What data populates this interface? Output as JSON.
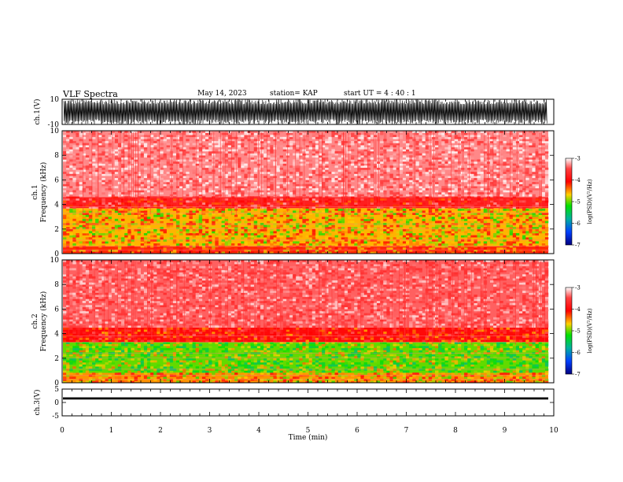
{
  "header": {
    "title": "VLF Spectra",
    "date": "May 14, 2023",
    "station": "station= KAP",
    "start": "start  UT  =   4 : 40 : 1"
  },
  "chart_data": [
    {
      "type": "line",
      "panel": "ch1-waveform",
      "ylabel": "ch.1(V)",
      "ylim": [
        -10,
        10
      ],
      "yticks": [
        "10",
        "-10"
      ],
      "xlim": [
        0,
        10
      ]
    },
    {
      "type": "heatmap",
      "panel": "ch1-spectrogram",
      "ylabel": "ch.1\nFrequency  (kHz)",
      "ylim": [
        0,
        10
      ],
      "yticks": [
        "0",
        "2",
        "4",
        "6",
        "8",
        "10"
      ],
      "xlim": [
        0,
        10
      ],
      "colorbar": {
        "label": "log(PSD)(V²/Hz)",
        "range": [
          -7,
          -3
        ],
        "ticks": [
          "-3",
          "-4",
          "-5",
          "-6",
          "-7"
        ]
      },
      "bands": [
        {
          "from": 0,
          "to": 0.6,
          "level": -4.2
        },
        {
          "from": 0.6,
          "to": 3.7,
          "level": -4.6
        },
        {
          "from": 3.7,
          "to": 4.6,
          "level": -3.8
        },
        {
          "from": 4.6,
          "to": 10,
          "level": -3.3
        }
      ]
    },
    {
      "type": "heatmap",
      "panel": "ch2-spectrogram",
      "ylabel": "ch.2\nFrequency  (kHz)",
      "ylim": [
        0,
        10
      ],
      "yticks": [
        "0",
        "2",
        "4",
        "6",
        "8",
        "10"
      ],
      "xlim": [
        0,
        10
      ],
      "colorbar": {
        "label": "log(PSD)(V²/Hz)",
        "range": [
          -7,
          -3
        ],
        "ticks": [
          "-3",
          "-4",
          "-5",
          "-6",
          "-7"
        ]
      },
      "bands": [
        {
          "from": 0,
          "to": 0.8,
          "level": -4.5
        },
        {
          "from": 0.8,
          "to": 3.3,
          "level": -5.0
        },
        {
          "from": 3.3,
          "to": 4.5,
          "level": -4.0
        },
        {
          "from": 4.5,
          "to": 10,
          "level": -3.4
        }
      ]
    },
    {
      "type": "line",
      "panel": "ch3-waveform",
      "ylabel": "ch.3(V)",
      "ylim": [
        -5,
        5
      ],
      "yticks": [
        "5",
        "0",
        "-5"
      ],
      "xlim": [
        0,
        10
      ],
      "xlabel": "Time  (min)",
      "xticks": [
        "0",
        "1",
        "2",
        "3",
        "4",
        "5",
        "6",
        "7",
        "8",
        "9",
        "10"
      ]
    }
  ]
}
